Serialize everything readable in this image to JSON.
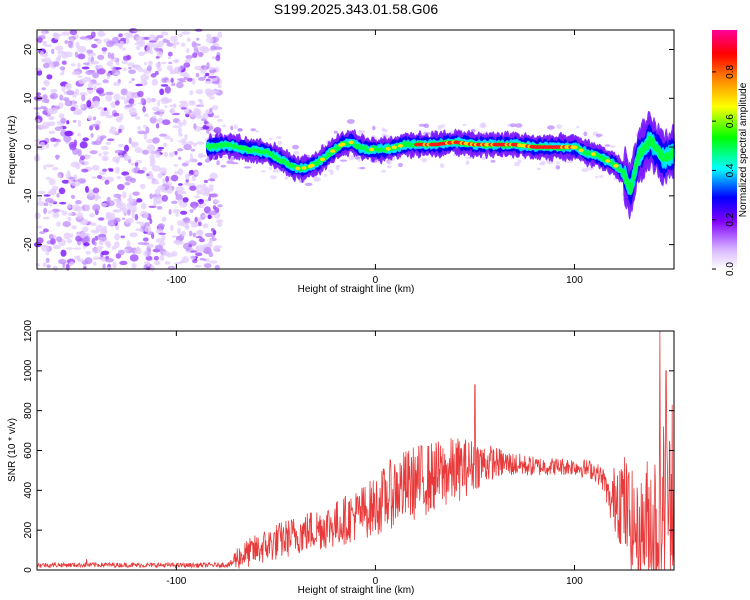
{
  "title": "S199.2025.343.01.58.G06",
  "chart_data": [
    {
      "type": "heatmap",
      "xlabel": "Height of straight line (km)",
      "ylabel": "Frequency (Hz)",
      "xlim": [
        -170,
        150
      ],
      "ylim": [
        -25,
        24
      ],
      "x_ticks": [
        -100,
        0,
        100
      ],
      "y_ticks": [
        -20,
        -10,
        0,
        10,
        20
      ],
      "colorbar": {
        "label": "Normalized spectral amplitude",
        "range": [
          0,
          0.97
        ],
        "ticks": [
          "0.0",
          "0.2",
          "0.4",
          "0.6",
          "0.8"
        ],
        "colormap": [
          "#ffffff",
          "#8000ff",
          "#0000ff",
          "#00ffff",
          "#00ff00",
          "#ffff00",
          "#ff8000",
          "#ff0000",
          "#ff00a0"
        ]
      },
      "noise_region": {
        "x_range": [
          -170,
          -78
        ],
        "freq_range": [
          -25,
          24
        ]
      },
      "ridge": {
        "x": [
          -83,
          -75,
          -65,
          -55,
          -48,
          -42,
          -38,
          -33,
          -28,
          -22,
          -17,
          -12,
          -8,
          -4,
          0,
          5,
          10,
          15,
          20,
          30,
          40,
          50,
          55,
          60,
          70,
          80,
          90,
          100,
          105,
          110,
          115,
          120,
          125,
          128,
          132,
          138,
          145,
          150
        ],
        "freq": [
          0.0,
          0.5,
          -0.5,
          -1.0,
          -2.5,
          -4.0,
          -4.5,
          -4.0,
          -3.0,
          -1.0,
          0.5,
          1.0,
          0.0,
          -0.5,
          -0.5,
          -0.5,
          0.0,
          0.5,
          0.5,
          0.5,
          1.0,
          0.5,
          0.5,
          0.5,
          0.5,
          0.0,
          0.0,
          0.0,
          -1.0,
          -1.5,
          -2.5,
          -3.5,
          -5.5,
          -9.0,
          -2.0,
          1.5,
          -2.5,
          -1.0
        ]
      },
      "strong_region_x": [
        20,
        100
      ]
    },
    {
      "type": "line",
      "xlabel": "Height of straight line (km)",
      "ylabel": "SNR (10 * v/v)",
      "xlim": [
        -170,
        150
      ],
      "ylim": [
        0,
        1200
      ],
      "x_ticks": [
        -100,
        0,
        100
      ],
      "y_ticks": [
        0,
        200,
        400,
        600,
        800,
        1000,
        1200
      ],
      "color": "#e83a3a",
      "envelope": {
        "x": [
          -170,
          -140,
          -110,
          -90,
          -80,
          -73,
          -70,
          -60,
          -50,
          -40,
          -30,
          -20,
          -10,
          0,
          5,
          10,
          20,
          30,
          40,
          50,
          60,
          70,
          80,
          90,
          100,
          110,
          115,
          118,
          122,
          128,
          132,
          138,
          142,
          146,
          150
        ],
        "mid": [
          25,
          26,
          24,
          24,
          25,
          27,
          60,
          100,
          140,
          175,
          205,
          230,
          275,
          320,
          360,
          400,
          440,
          470,
          500,
          530,
          540,
          530,
          520,
          520,
          520,
          500,
          450,
          330,
          400,
          250,
          180,
          250,
          220,
          400,
          300
        ],
        "amp": [
          12,
          12,
          12,
          12,
          12,
          14,
          60,
          80,
          95,
          100,
          110,
          120,
          130,
          150,
          170,
          180,
          190,
          180,
          170,
          130,
          80,
          60,
          50,
          45,
          45,
          50,
          60,
          90,
          250,
          280,
          230,
          380,
          450,
          420,
          300
        ]
      },
      "peaks": [
        {
          "x": -145,
          "y": 55
        },
        {
          "x": 50,
          "y": 930
        },
        {
          "x": 143,
          "y": 1200
        },
        {
          "x": 146,
          "y": 1000
        },
        {
          "x": 149,
          "y": 830
        }
      ]
    }
  ]
}
